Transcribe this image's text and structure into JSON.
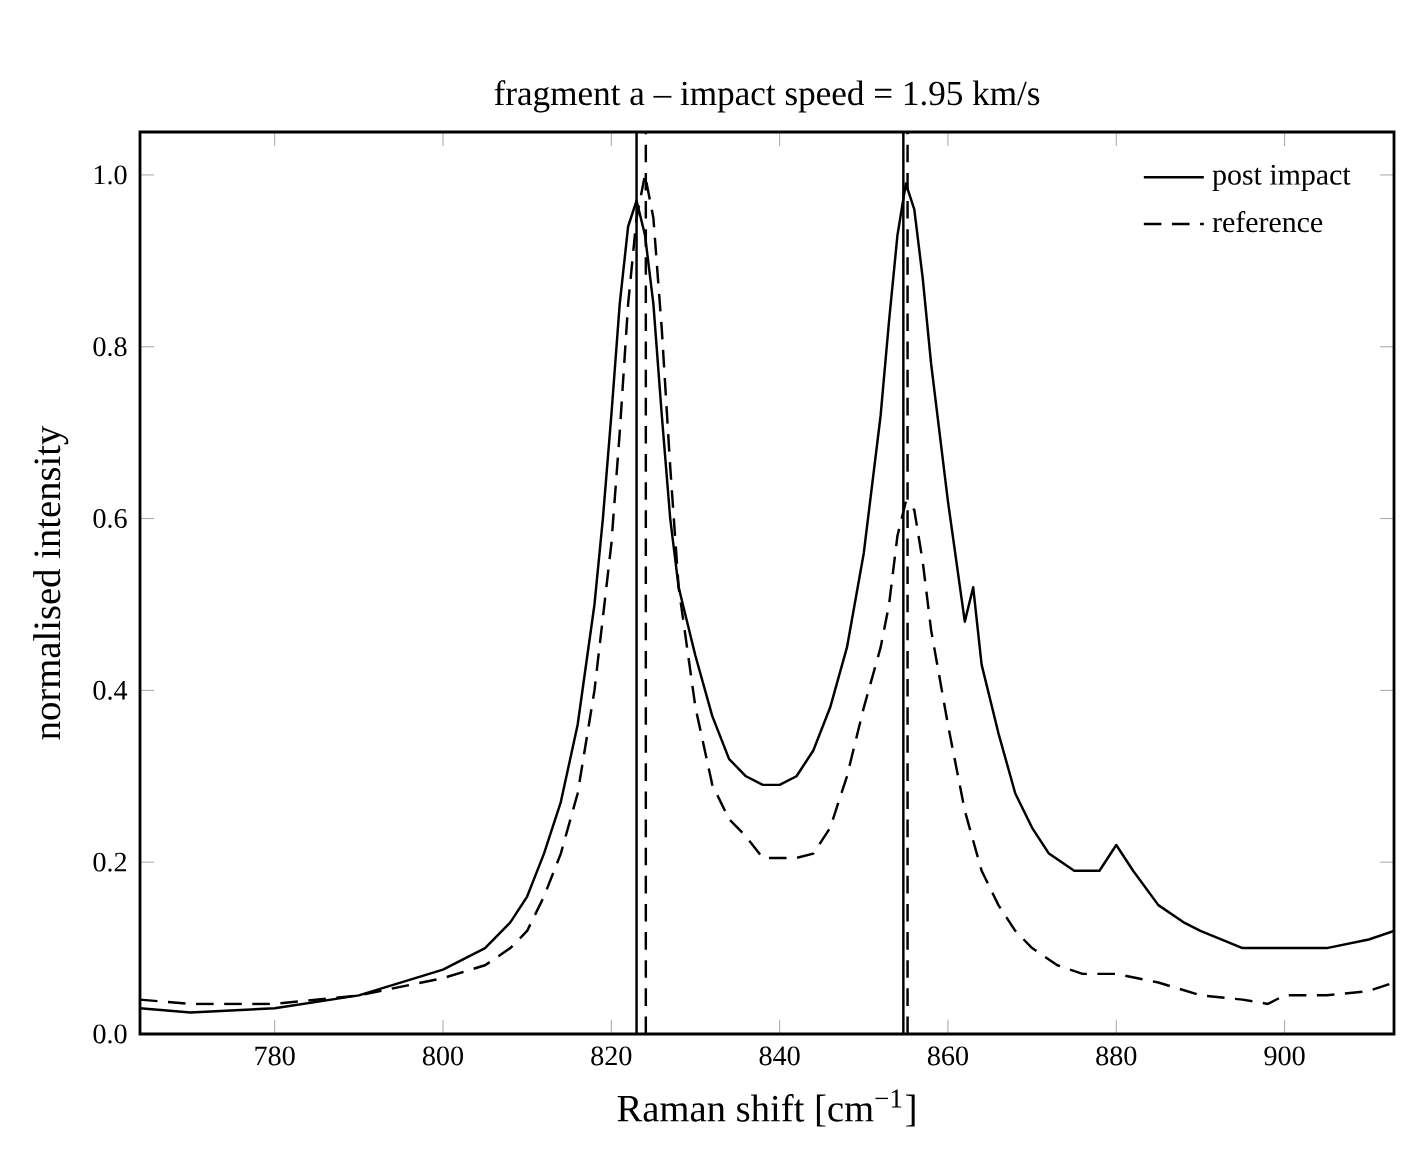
{
  "chart_data": {
    "type": "line",
    "title": "fragment a – impact speed = 1.95 km/s",
    "xlabel": "Raman shift [cm$^{−1}$]",
    "ylabel": "normalised intensity",
    "xlim": [
      764,
      913
    ],
    "ylim": [
      0,
      1.05
    ],
    "xticks": [
      780,
      800,
      820,
      840,
      860,
      880,
      900
    ],
    "yticks": [
      {
        "value": 0,
        "label": "0.0"
      },
      {
        "value": 0.2,
        "label": "0.2"
      },
      {
        "value": 0.4,
        "label": "0.4"
      },
      {
        "value": 0.6,
        "label": "0.6"
      },
      {
        "value": 0.8,
        "label": "0.8"
      },
      {
        "value": 1,
        "label": "1.0"
      }
    ],
    "legend": "top right",
    "grid": false,
    "marker": "none",
    "series": [
      {
        "name": "post impact",
        "color": "#000000",
        "line_style": "solid",
        "x": [
          764,
          770,
          780,
          790,
          800,
          805,
          808,
          810,
          812,
          814,
          816,
          818,
          819,
          820,
          821,
          822,
          823,
          824,
          825,
          826,
          827,
          828,
          830,
          832,
          834,
          836,
          838,
          840,
          842,
          844,
          846,
          848,
          850,
          852,
          853,
          854,
          855,
          856,
          857,
          858,
          860,
          862,
          863,
          864,
          866,
          868,
          870,
          872,
          875,
          878,
          880,
          882,
          885,
          888,
          890,
          895,
          900,
          905,
          910,
          913
        ],
        "values": [
          0.03,
          0.025,
          0.03,
          0.045,
          0.075,
          0.1,
          0.13,
          0.16,
          0.21,
          0.27,
          0.36,
          0.5,
          0.6,
          0.72,
          0.85,
          0.94,
          0.97,
          0.93,
          0.85,
          0.72,
          0.6,
          0.52,
          0.44,
          0.37,
          0.32,
          0.3,
          0.29,
          0.29,
          0.3,
          0.33,
          0.38,
          0.45,
          0.56,
          0.72,
          0.83,
          0.93,
          0.99,
          0.96,
          0.88,
          0.78,
          0.62,
          0.48,
          0.52,
          0.43,
          0.35,
          0.28,
          0.24,
          0.21,
          0.19,
          0.19,
          0.22,
          0.19,
          0.15,
          0.13,
          0.12,
          0.1,
          0.1,
          0.1,
          0.11,
          0.12
        ]
      },
      {
        "name": "reference",
        "color": "#000000",
        "line_style": "dashed",
        "x": [
          764,
          770,
          780,
          790,
          800,
          805,
          808,
          810,
          812,
          814,
          816,
          818,
          820,
          821,
          822,
          823,
          824,
          825,
          826,
          827,
          828,
          830,
          832,
          834,
          836,
          838,
          840,
          842,
          844,
          846,
          848,
          850,
          852,
          853,
          854,
          855,
          856,
          857,
          858,
          860,
          862,
          864,
          866,
          868,
          870,
          873,
          876,
          880,
          885,
          890,
          895,
          898,
          900,
          905,
          910,
          913
        ],
        "values": [
          0.04,
          0.035,
          0.035,
          0.045,
          0.065,
          0.08,
          0.1,
          0.12,
          0.16,
          0.21,
          0.28,
          0.4,
          0.57,
          0.7,
          0.85,
          0.95,
          1.0,
          0.95,
          0.82,
          0.66,
          0.52,
          0.38,
          0.29,
          0.25,
          0.23,
          0.205,
          0.205,
          0.205,
          0.21,
          0.24,
          0.3,
          0.38,
          0.45,
          0.5,
          0.58,
          0.62,
          0.61,
          0.55,
          0.47,
          0.36,
          0.26,
          0.19,
          0.15,
          0.12,
          0.1,
          0.08,
          0.07,
          0.07,
          0.06,
          0.045,
          0.04,
          0.035,
          0.045,
          0.045,
          0.05,
          0.06
        ]
      }
    ],
    "ref_lines": [
      {
        "axis": "x",
        "value": 823.0,
        "color": "#000000",
        "line_style": "solid"
      },
      {
        "axis": "x",
        "value": 824.1,
        "color": "#000000",
        "line_style": "dashed"
      },
      {
        "axis": "x",
        "value": 854.7,
        "color": "#000000",
        "line_style": "solid"
      },
      {
        "axis": "x",
        "value": 855.2,
        "color": "#000000",
        "line_style": "dashed"
      }
    ]
  }
}
